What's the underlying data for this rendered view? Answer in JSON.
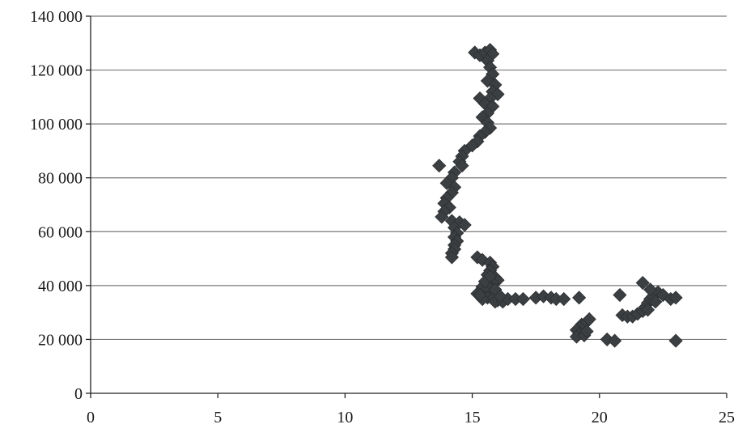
{
  "chart_data": {
    "type": "scatter",
    "title": "",
    "xlabel": "",
    "ylabel": "",
    "xlim": [
      0,
      25
    ],
    "ylim": [
      0,
      140000
    ],
    "x_ticks": [
      0,
      5,
      10,
      15,
      20,
      25
    ],
    "x_tick_labels": [
      "0",
      "5",
      "10",
      "15",
      "20",
      "25"
    ],
    "y_ticks": [
      0,
      20000,
      40000,
      60000,
      80000,
      100000,
      120000,
      140000
    ],
    "y_tick_labels": [
      "0",
      "20 000",
      "40 000",
      "60 000",
      "80 000",
      "100 000",
      "120 000",
      "140 000"
    ],
    "grid": "horizontal",
    "legend": "none",
    "marker": "diamond",
    "colors": {
      "marker": "#3c3f42",
      "grid": "#7a7a7a",
      "axis": "#222222"
    },
    "series": [
      {
        "points": [
          [
            15.1,
            126500
          ],
          [
            15.3,
            125500
          ],
          [
            15.5,
            126500
          ],
          [
            15.7,
            127500
          ],
          [
            15.8,
            126000
          ],
          [
            15.6,
            123500
          ],
          [
            15.7,
            121000
          ],
          [
            15.8,
            118500
          ],
          [
            15.6,
            116000
          ],
          [
            15.9,
            114500
          ],
          [
            15.8,
            112000
          ],
          [
            16.0,
            111000
          ],
          [
            15.7,
            109500
          ],
          [
            15.3,
            109500
          ],
          [
            15.5,
            107500
          ],
          [
            15.8,
            106500
          ],
          [
            15.6,
            104000
          ],
          [
            15.4,
            102500
          ],
          [
            15.6,
            100500
          ],
          [
            15.7,
            98500
          ],
          [
            15.5,
            97000
          ],
          [
            15.3,
            95500
          ],
          [
            15.2,
            93500
          ],
          [
            15.0,
            92000
          ],
          [
            14.7,
            90000
          ],
          [
            14.6,
            88000
          ],
          [
            14.5,
            86000
          ],
          [
            14.6,
            84500
          ],
          [
            13.7,
            84500
          ],
          [
            14.3,
            82000
          ],
          [
            14.2,
            80000
          ],
          [
            14.0,
            78000
          ],
          [
            14.3,
            76500
          ],
          [
            14.2,
            74500
          ],
          [
            14.0,
            72500
          ],
          [
            13.9,
            70500
          ],
          [
            14.1,
            69000
          ],
          [
            13.9,
            67500
          ],
          [
            13.8,
            65500
          ],
          [
            14.2,
            64000
          ],
          [
            14.5,
            63500
          ],
          [
            14.7,
            62500
          ],
          [
            14.3,
            61500
          ],
          [
            14.4,
            59500
          ],
          [
            14.3,
            58000
          ],
          [
            14.4,
            56500
          ],
          [
            14.3,
            55000
          ],
          [
            14.3,
            53500
          ],
          [
            14.2,
            52000
          ],
          [
            14.2,
            50500
          ],
          [
            15.2,
            50500
          ],
          [
            15.4,
            49500
          ],
          [
            15.7,
            48500
          ],
          [
            15.8,
            47000
          ],
          [
            15.7,
            45500
          ],
          [
            15.6,
            44000
          ],
          [
            15.9,
            43000
          ],
          [
            16.0,
            42000
          ],
          [
            15.8,
            41000
          ],
          [
            15.6,
            40500
          ],
          [
            15.4,
            39500
          ],
          [
            15.7,
            39000
          ],
          [
            15.5,
            38000
          ],
          [
            15.2,
            37000
          ],
          [
            15.9,
            37500
          ],
          [
            15.4,
            36000
          ],
          [
            15.6,
            35500
          ],
          [
            15.8,
            35000
          ],
          [
            16.0,
            34500
          ],
          [
            15.9,
            34000
          ],
          [
            16.2,
            34000
          ],
          [
            15.4,
            35000
          ],
          [
            16.4,
            35000
          ],
          [
            16.7,
            35000
          ],
          [
            17.0,
            35000
          ],
          [
            17.5,
            35500
          ],
          [
            17.8,
            36000
          ],
          [
            18.1,
            35500
          ],
          [
            18.3,
            35000
          ],
          [
            18.6,
            35000
          ],
          [
            19.2,
            35500
          ],
          [
            19.3,
            25500
          ],
          [
            19.5,
            26500
          ],
          [
            19.6,
            27500
          ],
          [
            19.1,
            23500
          ],
          [
            19.2,
            22000
          ],
          [
            19.1,
            21000
          ],
          [
            19.4,
            21500
          ],
          [
            19.5,
            23000
          ],
          [
            20.3,
            20000
          ],
          [
            20.6,
            19500
          ],
          [
            20.8,
            36500
          ],
          [
            20.9,
            29000
          ],
          [
            21.1,
            28500
          ],
          [
            21.3,
            28500
          ],
          [
            21.5,
            29500
          ],
          [
            21.7,
            30500
          ],
          [
            21.8,
            32000
          ],
          [
            21.9,
            33500
          ],
          [
            22.0,
            35000
          ],
          [
            22.1,
            36000
          ],
          [
            22.3,
            37500
          ],
          [
            22.5,
            36500
          ],
          [
            21.7,
            41000
          ],
          [
            22.0,
            38500
          ],
          [
            21.9,
            31000
          ],
          [
            22.8,
            35000
          ],
          [
            23.0,
            35500
          ],
          [
            23.0,
            19500
          ],
          [
            22.2,
            34000
          ],
          [
            15.3,
            36500
          ],
          [
            15.5,
            41500
          ],
          [
            15.7,
            43500
          ],
          [
            15.9,
            38500
          ],
          [
            16.1,
            36000
          ]
        ]
      }
    ]
  }
}
